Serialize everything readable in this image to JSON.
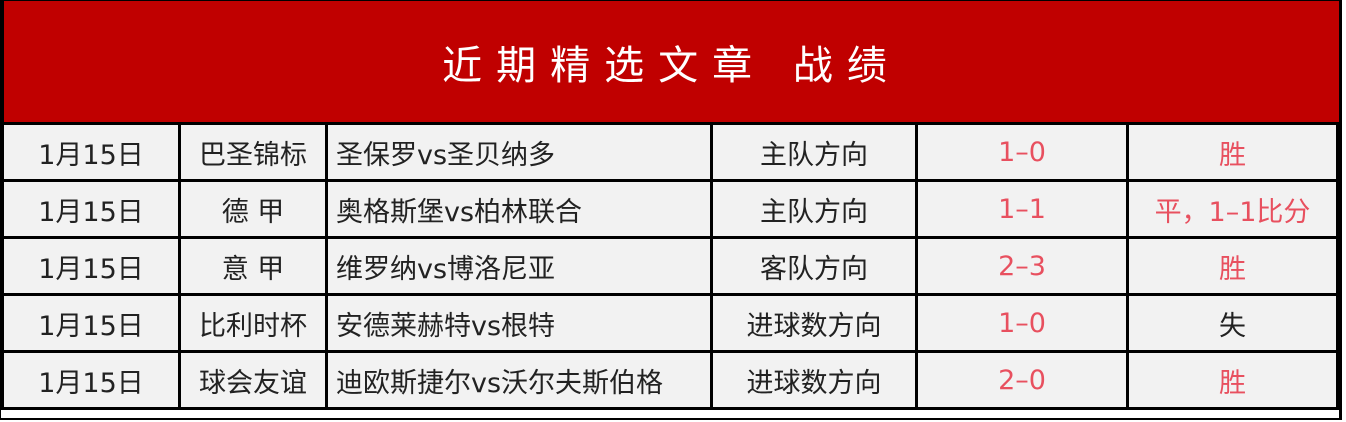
{
  "title": "近期精选文章 战绩",
  "colors": {
    "header_bg": "#c00000",
    "highlight_text": "#e8505f",
    "cell_bg": "#f2f2f2"
  },
  "rows": [
    {
      "date": "1月15日",
      "league": "巴圣锦标",
      "match": "圣保罗vs圣贝纳多",
      "direction": "主队方向",
      "score": "1–0",
      "result": "胜",
      "result_red": true
    },
    {
      "date": "1月15日",
      "league": "德 甲",
      "match": "奥格斯堡vs柏林联合",
      "direction": "主队方向",
      "score": "1–1",
      "result": "平，1–1比分",
      "result_red": true
    },
    {
      "date": "1月15日",
      "league": "意 甲",
      "match": "维罗纳vs博洛尼亚",
      "direction": "客队方向",
      "score": "2–3",
      "result": "胜",
      "result_red": true
    },
    {
      "date": "1月15日",
      "league": "比利时杯",
      "match": "安德莱赫特vs根特",
      "direction": "进球数方向",
      "score": "1–0",
      "result": "失",
      "result_red": false
    },
    {
      "date": "1月15日",
      "league": "球会友谊",
      "match": "迪欧斯捷尔vs沃尔夫斯伯格",
      "direction": "进球数方向",
      "score": "2–0",
      "result": "胜",
      "result_red": true
    }
  ]
}
